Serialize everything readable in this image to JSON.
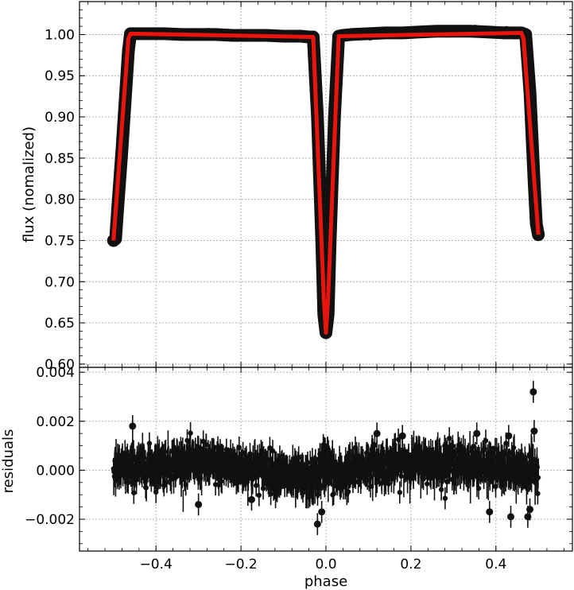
{
  "chart_data": [
    {
      "type": "scatter",
      "panel": "top",
      "xlabel": "",
      "ylabel": "flux  (nomalized)",
      "xlim": [
        -0.58,
        0.58
      ],
      "ylim": [
        0.596,
        1.04
      ],
      "yticks": [
        0.6,
        0.65,
        0.7,
        0.75,
        0.8,
        0.85,
        0.9,
        0.95,
        1.0
      ],
      "ytick_labels": [
        "0.60",
        "0.65",
        "0.70",
        "0.75",
        "0.80",
        "0.85",
        "0.90",
        "0.95",
        "1.00"
      ],
      "grid": true,
      "series": [
        {
          "kind": "data points",
          "color": "#111111",
          "x": [
            -0.5,
            -0.495,
            -0.49,
            -0.48,
            -0.47,
            -0.465,
            -0.46,
            -0.42,
            -0.38,
            -0.34,
            -0.3,
            -0.26,
            -0.22,
            -0.18,
            -0.14,
            -0.1,
            -0.06,
            -0.04,
            -0.03,
            -0.02,
            -0.01,
            -0.005,
            0.0,
            0.005,
            0.01,
            0.02,
            0.03,
            0.04,
            0.06,
            0.1,
            0.14,
            0.18,
            0.22,
            0.26,
            0.3,
            0.34,
            0.38,
            0.42,
            0.46,
            0.47,
            0.48,
            0.49,
            0.495,
            0.5
          ],
          "y": [
            0.75,
            0.752,
            0.79,
            0.86,
            0.94,
            0.98,
            1.001,
            1.001,
            1.001,
            1.0,
            1.0,
            1.0,
            0.999,
            0.999,
            0.999,
            0.998,
            0.998,
            0.997,
            0.997,
            0.9,
            0.75,
            0.66,
            0.638,
            0.66,
            0.75,
            0.9,
            0.998,
            0.999,
            1.0,
            1.001,
            1.002,
            1.002,
            1.003,
            1.004,
            1.004,
            1.004,
            1.003,
            1.002,
            1.002,
            1.0,
            0.93,
            0.82,
            0.77,
            0.757
          ]
        },
        {
          "kind": "model",
          "color": "#e8150f",
          "x": [
            -0.5,
            -0.465,
            -0.46,
            -0.03,
            -0.005,
            0.0,
            0.005,
            0.03,
            0.46,
            0.465,
            0.5
          ],
          "y": [
            0.75,
            0.995,
            1.001,
            0.997,
            0.68,
            0.638,
            0.68,
            0.998,
            1.002,
            0.995,
            0.757
          ]
        }
      ]
    },
    {
      "type": "scatter",
      "panel": "bottom",
      "xlabel": "phase",
      "ylabel": "residuals",
      "xlim": [
        -0.58,
        0.58
      ],
      "ylim": [
        -0.0033,
        0.0042
      ],
      "xticks": [
        -0.4,
        -0.2,
        0.0,
        0.2,
        0.4
      ],
      "xtick_labels": [
        "−0.4",
        "−0.2",
        "0.0",
        "0.2",
        "0.4"
      ],
      "yticks": [
        -0.002,
        0.0,
        0.002,
        0.004
      ],
      "ytick_labels": [
        "−0.002",
        "0.000",
        "0.002",
        "0.004"
      ],
      "grid": true,
      "noise_band": {
        "x": [
          -0.5,
          -0.45,
          -0.4,
          -0.35,
          -0.3,
          -0.25,
          -0.2,
          -0.15,
          -0.1,
          -0.06,
          -0.03,
          -0.01,
          0.0,
          0.01,
          0.03,
          0.06,
          0.1,
          0.15,
          0.2,
          0.25,
          0.3,
          0.35,
          0.4,
          0.45,
          0.5
        ],
        "center": [
          0.0,
          0.0001,
          0.0002,
          0.0003,
          0.0003,
          0.0002,
          0.0001,
          0.0001,
          -0.0002,
          -0.0004,
          -0.0004,
          0.0,
          0.0004,
          0.0,
          -0.0003,
          0.0,
          0.0002,
          0.0002,
          0.0003,
          0.0003,
          0.0003,
          0.0002,
          0.0001,
          0.0,
          0.0
        ],
        "spread": [
          0.0007,
          0.0007,
          0.0007,
          0.0007,
          0.0007,
          0.0007,
          0.0007,
          0.0007,
          0.0007,
          0.0007,
          0.0007,
          0.0008,
          0.0009,
          0.0008,
          0.0007,
          0.0007,
          0.0007,
          0.0007,
          0.0007,
          0.0007,
          0.0007,
          0.0007,
          0.0007,
          0.0007,
          0.0007
        ],
        "errorbar": 0.00045,
        "color": "#111111"
      },
      "outliers": {
        "x": [
          -0.455,
          -0.3,
          -0.175,
          -0.02,
          -0.01,
          0.12,
          0.18,
          0.355,
          0.385,
          0.43,
          0.435,
          0.475,
          0.48,
          0.488,
          0.49
        ],
        "y": [
          0.0018,
          -0.0014,
          -0.0012,
          -0.0022,
          -0.0017,
          0.0015,
          0.0014,
          0.0015,
          -0.0017,
          0.0014,
          -0.0019,
          -0.0019,
          -0.0016,
          0.0032,
          0.0016
        ]
      }
    }
  ]
}
